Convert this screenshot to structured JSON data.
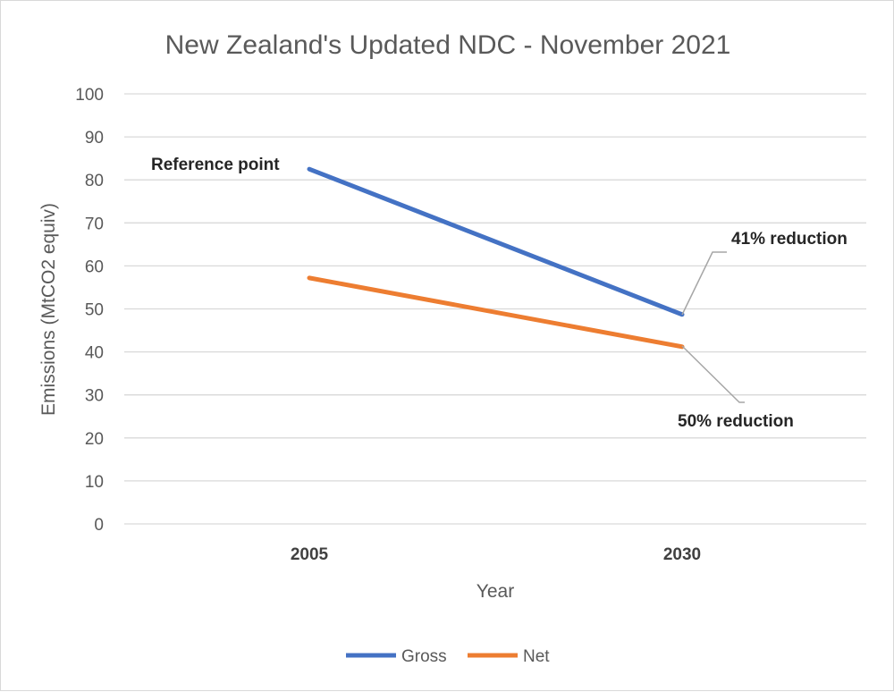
{
  "chart_data": {
    "type": "line",
    "title": "New Zealand's Updated NDC - November 2021",
    "xlabel": "Year",
    "ylabel": "Emissions (MtCO2 equiv)",
    "categories": [
      "2005",
      "2030"
    ],
    "ylim": [
      0,
      100
    ],
    "yticks": [
      0,
      10,
      20,
      30,
      40,
      50,
      60,
      70,
      80,
      90,
      100
    ],
    "grid": true,
    "legend_position": "bottom",
    "series": [
      {
        "name": "Gross",
        "values": [
          82.5,
          48.7
        ],
        "color": "#4472c4"
      },
      {
        "name": "Net",
        "values": [
          57.2,
          41.2
        ],
        "color": "#ed7d31"
      }
    ],
    "annotations": {
      "reference": "Reference point",
      "gross_reduction": "41% reduction",
      "net_reduction": "50% reduction"
    }
  }
}
